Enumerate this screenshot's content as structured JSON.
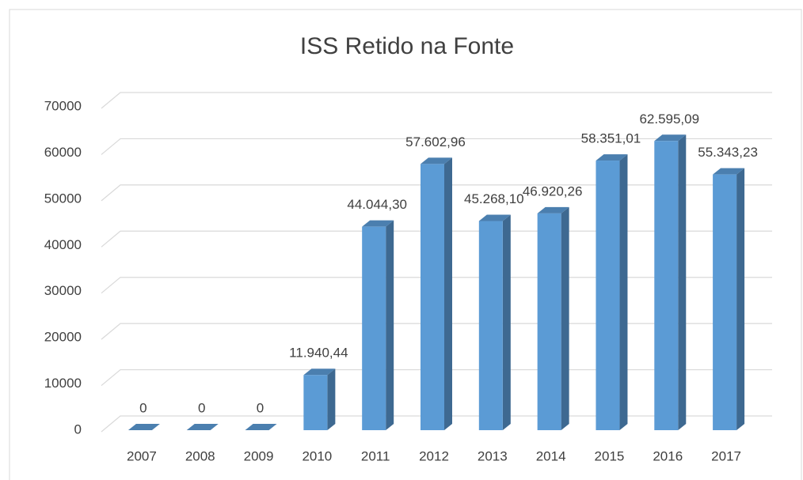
{
  "chart_data": {
    "type": "bar3d",
    "title": "ISS Retido na Fonte",
    "categories": [
      "2007",
      "2008",
      "2009",
      "2010",
      "2011",
      "2012",
      "2013",
      "2014",
      "2015",
      "2016",
      "2017"
    ],
    "values": [
      0,
      0,
      0,
      11940.44,
      44044.3,
      57602.96,
      45268.1,
      46920.26,
      58351.01,
      62595.09,
      55343.23
    ],
    "value_labels": [
      "0",
      "0",
      "0",
      "11.940,44",
      "44.044,30",
      "57.602,96",
      "45.268,10",
      "46.920,26",
      "58.351,01",
      "62.595,09",
      "55.343,23"
    ],
    "color": "#5b9bd5",
    "ylim": [
      0,
      70000
    ],
    "yticks": [
      0,
      10000,
      20000,
      30000,
      40000,
      50000,
      60000,
      70000
    ],
    "grid": true
  }
}
